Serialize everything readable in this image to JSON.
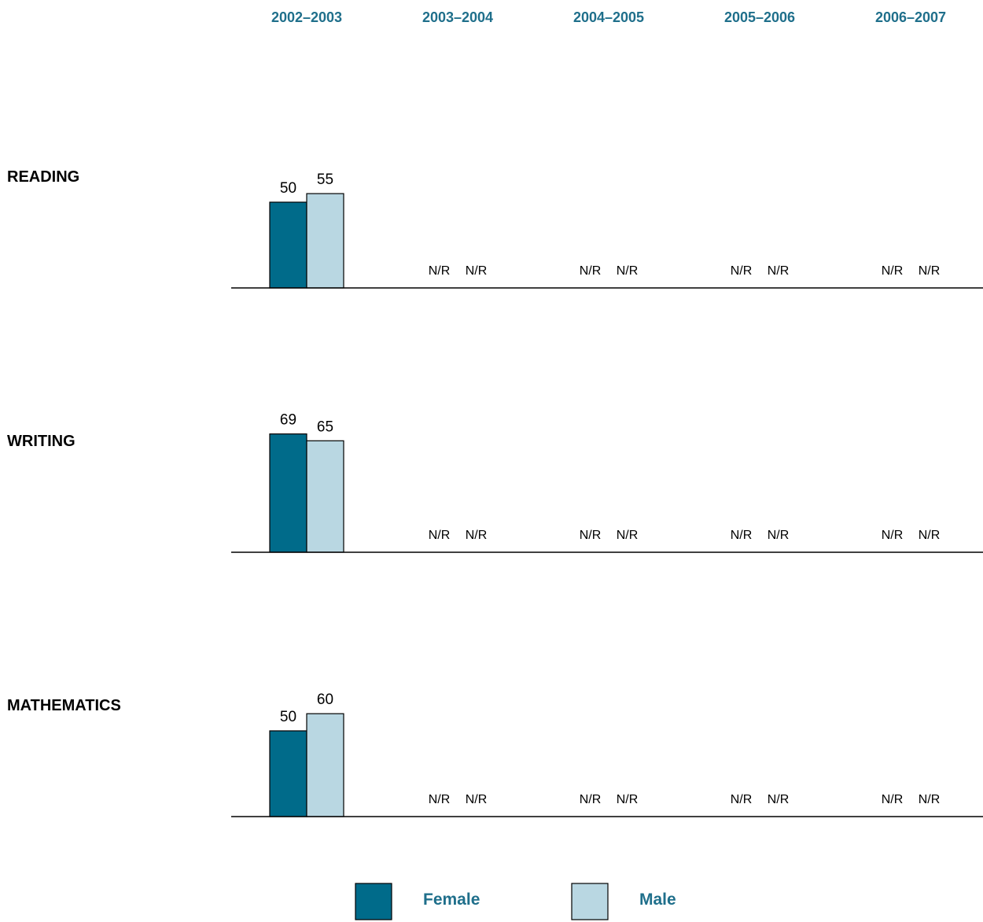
{
  "colors": {
    "female": "#006b8a",
    "male": "#b9d7e2",
    "accent_text": "#1f6f8b",
    "bar_stroke": "#000000",
    "baseline": "#000000"
  },
  "chart_data": {
    "type": "bar",
    "orientation": "grouped, small multiples by subject",
    "categories": [
      "2002–2003",
      "2003–2004",
      "2004–2005",
      "2005–2006",
      "2006–2007"
    ],
    "series_names": [
      "Female",
      "Male"
    ],
    "missing_label": "N/R",
    "panels": [
      {
        "subject": "READING",
        "series": [
          {
            "name": "Female",
            "values": [
              50,
              null,
              null,
              null,
              null
            ]
          },
          {
            "name": "Male",
            "values": [
              55,
              null,
              null,
              null,
              null
            ]
          }
        ]
      },
      {
        "subject": "WRITING",
        "series": [
          {
            "name": "Female",
            "values": [
              69,
              null,
              null,
              null,
              null
            ]
          },
          {
            "name": "Male",
            "values": [
              65,
              null,
              null,
              null,
              null
            ]
          }
        ]
      },
      {
        "subject": "MATHEMATICS",
        "series": [
          {
            "name": "Female",
            "values": [
              50,
              null,
              null,
              null,
              null
            ]
          },
          {
            "name": "Male",
            "values": [
              60,
              null,
              null,
              null,
              null
            ]
          }
        ]
      }
    ],
    "ylim": [
      0,
      100
    ],
    "grid": false,
    "legend_position": "bottom"
  }
}
